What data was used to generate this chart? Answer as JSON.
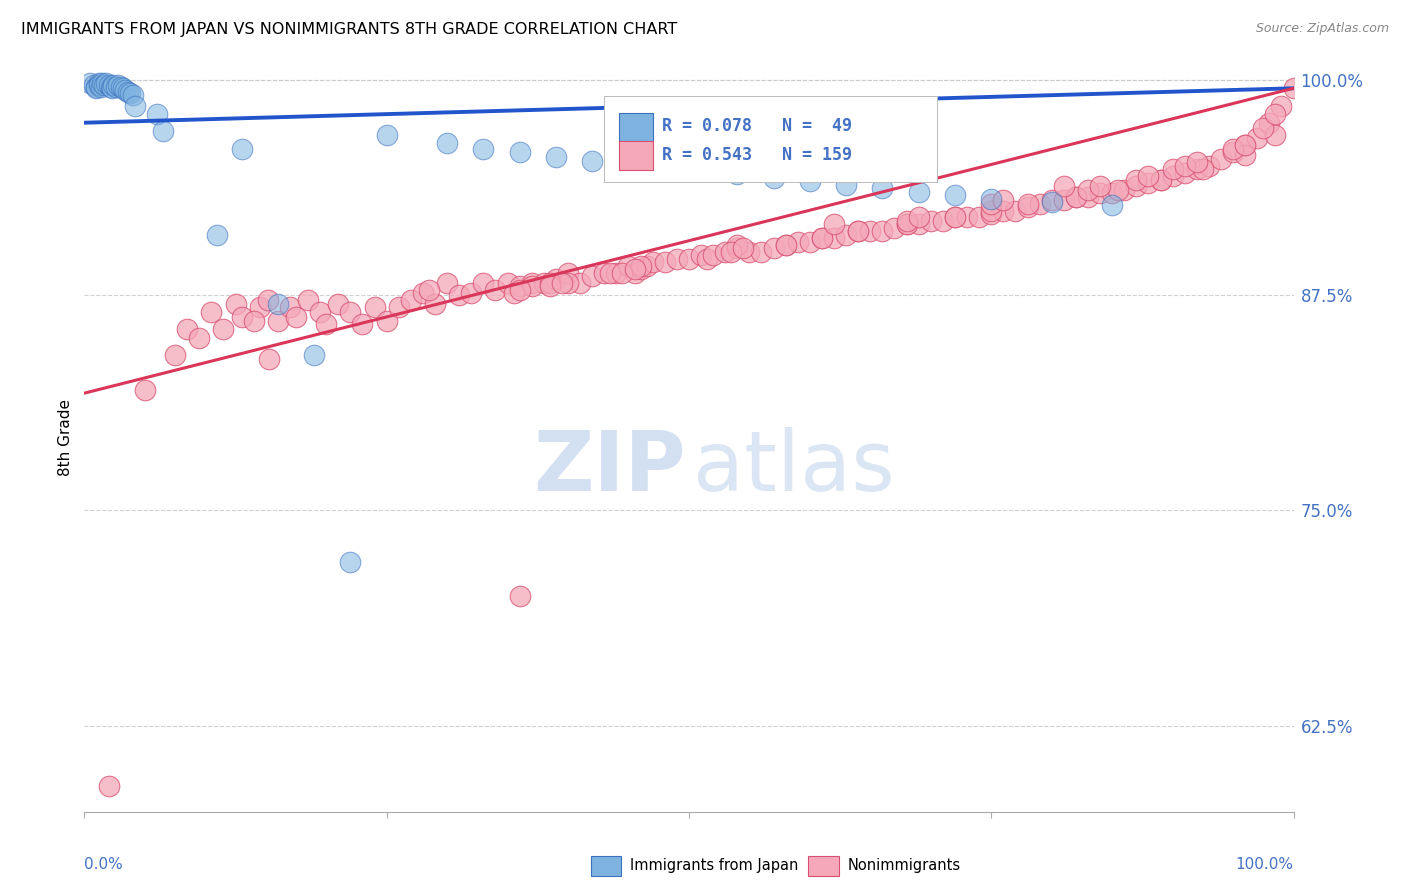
{
  "title": "IMMIGRANTS FROM JAPAN VS NONIMMIGRANTS 8TH GRADE CORRELATION CHART",
  "source": "Source: ZipAtlas.com",
  "ylabel": "8th Grade",
  "blue_color": "#7eb3e0",
  "pink_color": "#f4a8b8",
  "blue_edge": "#3a6fbe",
  "pink_edge": "#d94f70",
  "blue_line": "#2255cc",
  "pink_line": "#d9365a",
  "grid_color": "#cccccc",
  "label_color": "#4472c4",
  "watermark_zip_color": "#b0c8e8",
  "watermark_atlas_color": "#b0c8e8",
  "bg_color": "#ffffff",
  "xlim": [
    0.0,
    1.0
  ],
  "ylim": [
    0.575,
    1.01
  ],
  "yticks": [
    0.625,
    0.75,
    0.875,
    1.0
  ],
  "ytick_labels": [
    "62.5%",
    "75.0%",
    "87.5%",
    "100.0%"
  ],
  "blue_r": 0.078,
  "blue_n": 49,
  "pink_r": 0.543,
  "pink_n": 159,
  "blue_trend_x": [
    0.0,
    1.0
  ],
  "blue_trend_y": [
    0.975,
    0.995
  ],
  "pink_trend_x": [
    0.0,
    1.0
  ],
  "pink_trend_y": [
    0.818,
    0.995
  ],
  "blue_x": [
    0.005,
    0.008,
    0.01,
    0.01,
    0.012,
    0.012,
    0.014,
    0.015,
    0.016,
    0.018,
    0.02,
    0.022,
    0.023,
    0.024,
    0.026,
    0.028,
    0.03,
    0.032,
    0.034,
    0.036,
    0.038,
    0.04,
    0.042,
    0.06,
    0.065,
    0.11,
    0.13,
    0.16,
    0.19,
    0.22,
    0.25,
    0.3,
    0.33,
    0.36,
    0.39,
    0.42,
    0.45,
    0.48,
    0.51,
    0.54,
    0.57,
    0.6,
    0.63,
    0.66,
    0.69,
    0.72,
    0.75,
    0.8,
    0.85
  ],
  "blue_y": [
    0.998,
    0.997,
    0.996,
    0.995,
    0.998,
    0.997,
    0.996,
    0.998,
    0.997,
    0.998,
    0.997,
    0.996,
    0.995,
    0.997,
    0.996,
    0.997,
    0.996,
    0.995,
    0.994,
    0.993,
    0.992,
    0.991,
    0.985,
    0.98,
    0.97,
    0.91,
    0.96,
    0.87,
    0.84,
    0.72,
    0.968,
    0.963,
    0.96,
    0.958,
    0.955,
    0.953,
    0.951,
    0.949,
    0.947,
    0.945,
    0.943,
    0.941,
    0.939,
    0.937,
    0.935,
    0.933,
    0.931,
    0.929,
    0.927
  ],
  "pink_x": [
    0.02,
    0.05,
    0.075,
    0.085,
    0.095,
    0.105,
    0.115,
    0.125,
    0.13,
    0.145,
    0.152,
    0.16,
    0.17,
    0.175,
    0.185,
    0.195,
    0.2,
    0.21,
    0.22,
    0.23,
    0.24,
    0.25,
    0.26,
    0.27,
    0.28,
    0.29,
    0.3,
    0.31,
    0.32,
    0.33,
    0.34,
    0.35,
    0.36,
    0.37,
    0.38,
    0.39,
    0.4,
    0.41,
    0.42,
    0.43,
    0.44,
    0.45,
    0.455,
    0.46,
    0.465,
    0.47,
    0.48,
    0.49,
    0.5,
    0.51,
    0.515,
    0.52,
    0.53,
    0.54,
    0.55,
    0.56,
    0.57,
    0.58,
    0.59,
    0.6,
    0.61,
    0.62,
    0.63,
    0.64,
    0.65,
    0.66,
    0.67,
    0.68,
    0.69,
    0.7,
    0.71,
    0.72,
    0.73,
    0.74,
    0.75,
    0.76,
    0.77,
    0.78,
    0.79,
    0.8,
    0.81,
    0.82,
    0.83,
    0.84,
    0.85,
    0.86,
    0.87,
    0.88,
    0.89,
    0.9,
    0.91,
    0.92,
    0.93,
    0.94,
    0.95,
    0.96,
    0.97,
    0.98,
    0.99,
    1.0,
    0.153,
    0.37,
    0.4,
    0.435,
    0.58,
    0.61,
    0.64,
    0.68,
    0.72,
    0.75,
    0.78,
    0.82,
    0.855,
    0.89,
    0.925,
    0.96,
    0.985,
    0.14,
    0.285,
    0.385,
    0.46,
    0.54,
    0.62,
    0.385,
    0.395,
    0.535,
    0.545,
    0.68,
    0.69,
    0.75,
    0.76,
    0.81,
    0.9,
    0.83,
    0.84,
    0.87,
    0.88,
    0.91,
    0.92,
    0.95,
    0.96,
    0.975,
    0.985,
    0.355,
    0.36,
    0.445,
    0.455,
    0.36
  ],
  "pink_y": [
    0.59,
    0.82,
    0.84,
    0.855,
    0.85,
    0.865,
    0.855,
    0.87,
    0.862,
    0.868,
    0.872,
    0.86,
    0.868,
    0.862,
    0.872,
    0.865,
    0.858,
    0.87,
    0.865,
    0.858,
    0.868,
    0.86,
    0.868,
    0.872,
    0.876,
    0.87,
    0.882,
    0.875,
    0.876,
    0.882,
    0.878,
    0.882,
    0.88,
    0.882,
    0.882,
    0.884,
    0.888,
    0.882,
    0.886,
    0.888,
    0.888,
    0.892,
    0.888,
    0.89,
    0.892,
    0.894,
    0.894,
    0.896,
    0.896,
    0.898,
    0.896,
    0.898,
    0.9,
    0.902,
    0.9,
    0.9,
    0.902,
    0.904,
    0.906,
    0.906,
    0.908,
    0.908,
    0.91,
    0.912,
    0.912,
    0.912,
    0.914,
    0.916,
    0.916,
    0.918,
    0.918,
    0.92,
    0.92,
    0.92,
    0.922,
    0.924,
    0.924,
    0.926,
    0.928,
    0.93,
    0.93,
    0.932,
    0.932,
    0.934,
    0.934,
    0.936,
    0.938,
    0.94,
    0.942,
    0.944,
    0.946,
    0.948,
    0.95,
    0.954,
    0.958,
    0.962,
    0.966,
    0.975,
    0.985,
    0.995,
    0.838,
    0.88,
    0.882,
    0.888,
    0.904,
    0.908,
    0.912,
    0.916,
    0.92,
    0.924,
    0.928,
    0.932,
    0.936,
    0.942,
    0.948,
    0.956,
    0.968,
    0.86,
    0.878,
    0.882,
    0.892,
    0.904,
    0.916,
    0.88,
    0.882,
    0.9,
    0.902,
    0.918,
    0.92,
    0.928,
    0.93,
    0.938,
    0.948,
    0.936,
    0.938,
    0.942,
    0.944,
    0.95,
    0.952,
    0.96,
    0.962,
    0.972,
    0.98,
    0.876,
    0.878,
    0.888,
    0.89,
    0.7
  ]
}
